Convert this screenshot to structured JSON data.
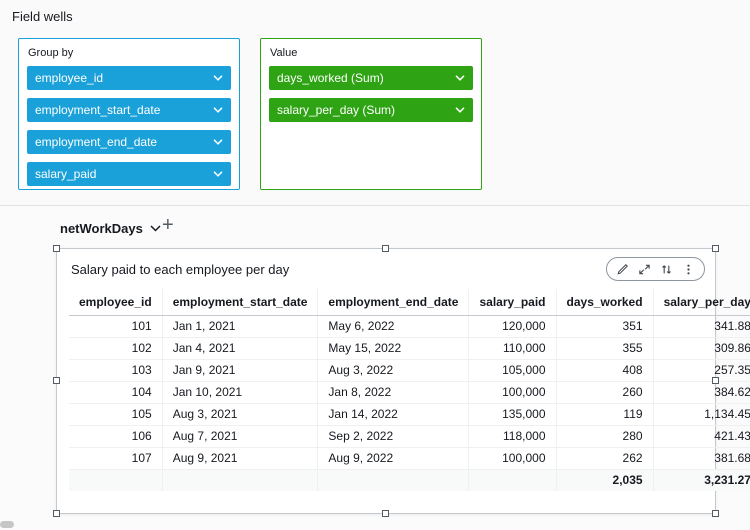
{
  "field_wells": {
    "label": "Field wells",
    "group_by": {
      "title": "Group by",
      "pills": [
        "employee_id",
        "employment_start_date",
        "employment_end_date",
        "salary_paid"
      ],
      "pill_color": "#1ba1d9",
      "border_color": "#1ba1d9"
    },
    "value": {
      "title": "Value",
      "pills": [
        "days_worked (Sum)",
        "salary_per_day (Sum)"
      ],
      "pill_color": "#2ea414",
      "border_color": "#2ea414"
    }
  },
  "sheet": {
    "tab_label": "netWorkDays",
    "add_tab_label": "+"
  },
  "visual": {
    "title": "Salary paid to each employee per day",
    "toolbar_icons": [
      "edit-icon",
      "maximize-icon",
      "up-down-arrows-icon",
      "kebab-menu-icon"
    ]
  },
  "chart_data": {
    "type": "table",
    "columns": [
      "employee_id",
      "employment_start_date",
      "employment_end_date",
      "salary_paid",
      "days_worked",
      "salary_per_day"
    ],
    "rows": [
      [
        "101",
        "Jan 1, 2021",
        "May 6, 2022",
        "120,000",
        "351",
        "341.88"
      ],
      [
        "102",
        "Jan 4, 2021",
        "May 15, 2022",
        "110,000",
        "355",
        "309.86"
      ],
      [
        "103",
        "Jan 9, 2021",
        "Aug 3, 2022",
        "105,000",
        "408",
        "257.35"
      ],
      [
        "104",
        "Jan 10, 2021",
        "Jan 8, 2022",
        "100,000",
        "260",
        "384.62"
      ],
      [
        "105",
        "Aug 3, 2021",
        "Jan 14, 2022",
        "135,000",
        "119",
        "1,134.45"
      ],
      [
        "106",
        "Aug 7, 2021",
        "Sep 2, 2022",
        "118,000",
        "280",
        "421.43"
      ],
      [
        "107",
        "Aug 9, 2021",
        "Aug 9, 2022",
        "100,000",
        "262",
        "381.68"
      ]
    ],
    "totals": [
      "",
      "",
      "",
      "",
      "2,035",
      "3,231.27"
    ]
  }
}
